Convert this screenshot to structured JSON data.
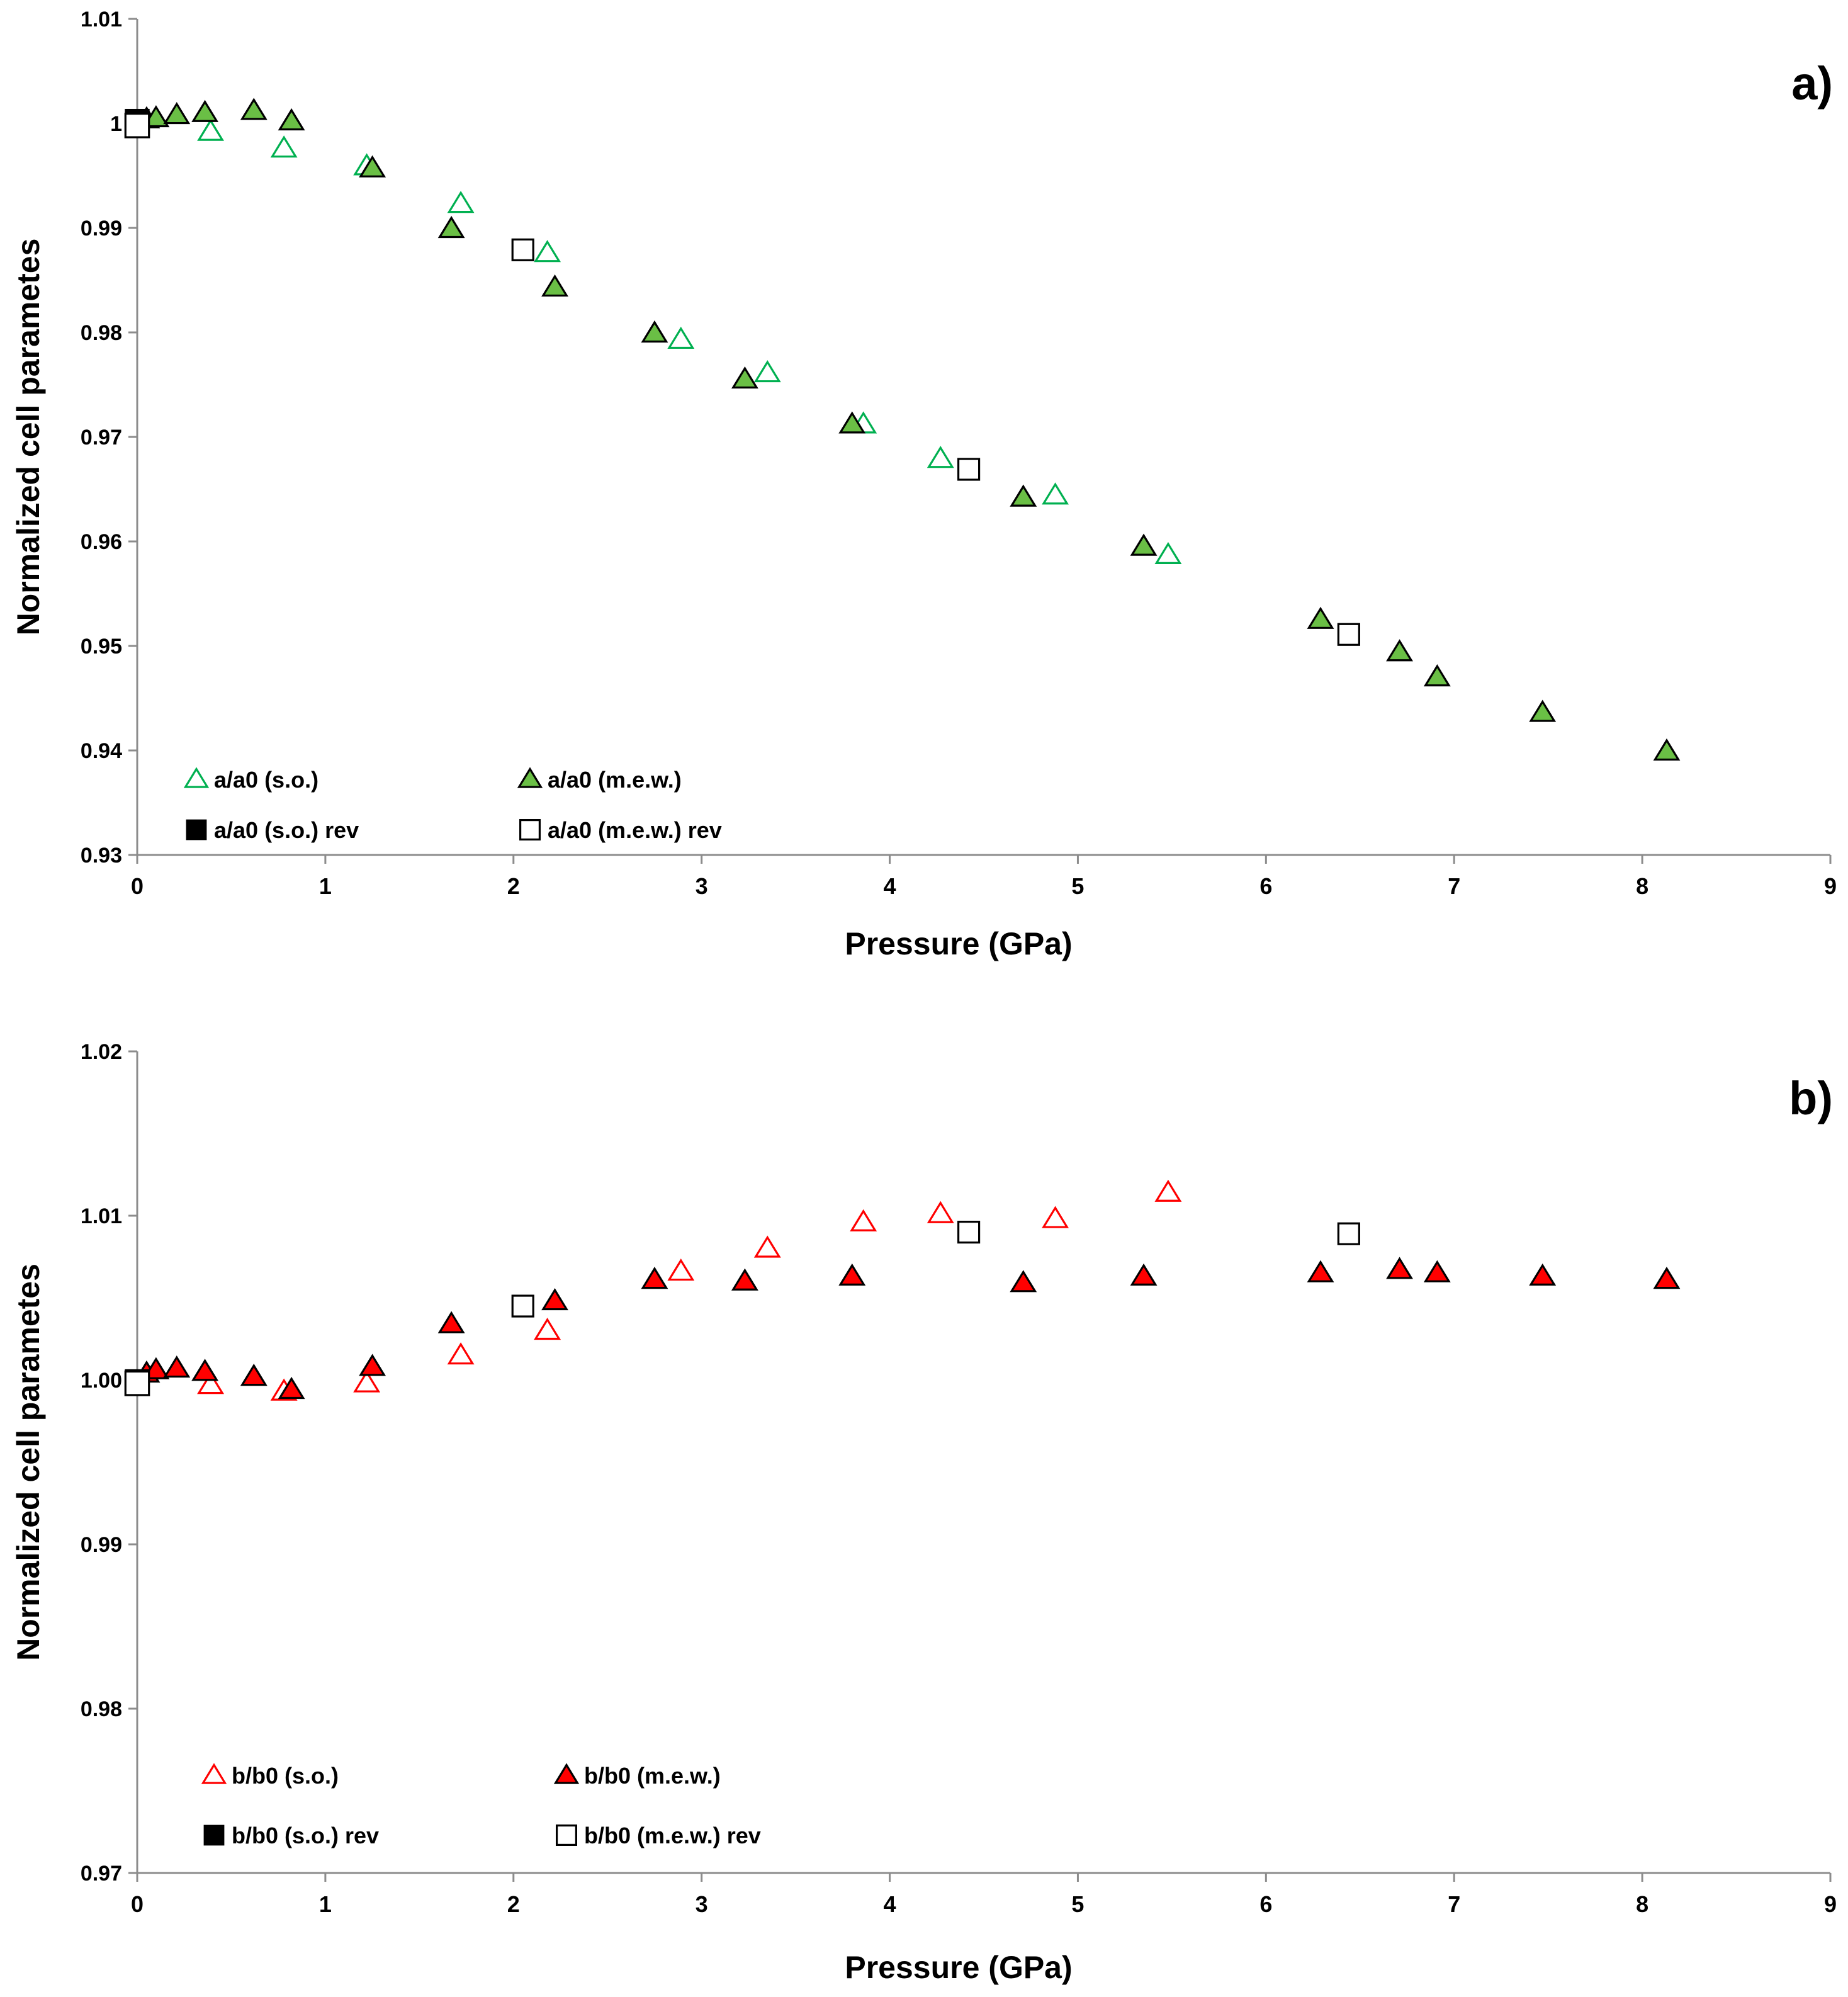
{
  "chart_data": [
    {
      "type": "scatter",
      "panel_label": "a)",
      "xlabel": "Pressure (GPa)",
      "ylabel": "Normalized cell parametes",
      "xlim": [
        0,
        9
      ],
      "ylim": [
        0.93,
        1.01
      ],
      "x_ticks": [
        0,
        1,
        2,
        3,
        4,
        5,
        6,
        7,
        8,
        9
      ],
      "y_ticks": [
        0.93,
        0.94,
        0.95,
        0.96,
        0.97,
        0.98,
        0.99,
        1,
        1.01
      ],
      "y_tick_labels": [
        "0.93",
        "0.94",
        "0.95",
        "0.96",
        "0.97",
        "0.98",
        "0.99",
        "1",
        "1.01"
      ],
      "grid": false,
      "legend_position": "bottom-left",
      "series": [
        {
          "name": "a/a0 (s.o.)",
          "marker": "triangle-open",
          "color": "#00b050",
          "x": [
            0.39,
            0.78,
            1.22,
            1.72,
            2.18,
            2.89,
            3.35,
            3.86,
            4.27,
            4.88,
            5.48
          ],
          "y": [
            0.9992,
            0.9976,
            0.9959,
            0.9923,
            0.9876,
            0.9793,
            0.9761,
            0.9712,
            0.9679,
            0.9644,
            0.9587
          ]
        },
        {
          "name": "a/a0 (m.e.w.)",
          "marker": "triangle-filled",
          "color": "#6abf45",
          "x": [
            0.05,
            0.1,
            0.21,
            0.36,
            0.62,
            0.82,
            1.25,
            1.67,
            2.22,
            2.75,
            3.23,
            3.8,
            4.71,
            5.35,
            6.29,
            6.71,
            6.91,
            7.47,
            8.13
          ],
          "y": [
            1.0004,
            1.0005,
            1.0008,
            1.001,
            1.0012,
            1.0002,
            0.9957,
            0.9899,
            0.9843,
            0.9799,
            0.9755,
            0.9712,
            0.9642,
            0.9595,
            0.9525,
            0.9494,
            0.947,
            0.9436,
            0.9399
          ]
        },
        {
          "name": "a/a0 (s.o.) rev",
          "marker": "square-filled",
          "color": "#000000",
          "x": [
            0.0
          ],
          "y": [
            1.0002
          ]
        },
        {
          "name": "a/a0 (m.e.w.) rev",
          "marker": "square-open",
          "color": "#000000",
          "x": [
            0.0,
            2.05,
            4.42,
            6.44
          ],
          "y": [
            0.9998,
            0.9879,
            0.9669,
            0.9511
          ]
        }
      ]
    },
    {
      "type": "scatter",
      "panel_label": "b)",
      "xlabel": "Pressure (GPa)",
      "ylabel": "Normalized cell parametes",
      "xlim": [
        0,
        9
      ],
      "ylim": [
        0.97,
        1.02
      ],
      "x_ticks": [
        0,
        1,
        2,
        3,
        4,
        5,
        6,
        7,
        8,
        9
      ],
      "y_ticks": [
        0.97,
        0.98,
        0.99,
        1.0,
        1.01,
        1.02
      ],
      "y_tick_labels": [
        "0.97",
        "0.98",
        "0.99",
        "1.00",
        "1.01",
        "1.02"
      ],
      "grid": false,
      "legend_position": "bottom-left",
      "series": [
        {
          "name": "b/b0 (s.o.)",
          "marker": "triangle-open",
          "color": "#ff0000",
          "x": [
            0.39,
            0.78,
            1.22,
            1.72,
            2.18,
            2.89,
            3.35,
            3.86,
            4.27,
            4.88,
            5.48
          ],
          "y": [
            0.9997,
            0.9993,
            0.9998,
            1.0015,
            1.003,
            1.0066,
            1.008,
            1.0096,
            1.0101,
            1.0098,
            1.0114
          ]
        },
        {
          "name": "b/b0 (m.e.w.)",
          "marker": "triangle-filled",
          "color": "#ff0000",
          "x": [
            0.05,
            0.1,
            0.21,
            0.36,
            0.62,
            0.82,
            1.25,
            1.67,
            2.22,
            2.75,
            3.23,
            3.8,
            4.71,
            5.35,
            6.29,
            6.71,
            6.91,
            7.47,
            8.13
          ],
          "y": [
            1.0004,
            1.0006,
            1.0007,
            1.0005,
            1.0002,
            0.9994,
            1.0008,
            1.0034,
            1.0048,
            1.0061,
            1.006,
            1.0063,
            1.0059,
            1.0063,
            1.0065,
            1.0067,
            1.0065,
            1.0063,
            1.0061
          ]
        },
        {
          "name": "b/b0 (s.o.) rev",
          "marker": "square-filled",
          "color": "#000000",
          "x": [
            0.0
          ],
          "y": [
            0.9999
          ]
        },
        {
          "name": "b/b0 (m.e.w.) rev",
          "marker": "square-open",
          "color": "#000000",
          "x": [
            0.0,
            2.05,
            4.42,
            6.44
          ],
          "y": [
            0.9998,
            1.0045,
            1.009,
            1.0089
          ]
        }
      ]
    }
  ]
}
